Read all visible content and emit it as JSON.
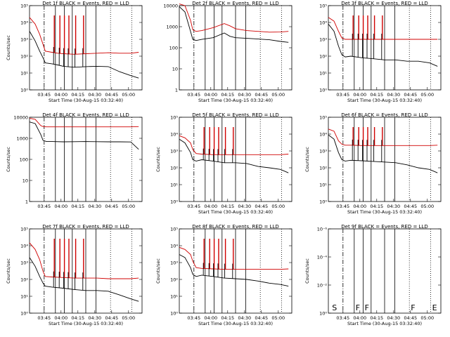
{
  "chart_data": [
    {
      "type": "line",
      "title": "Det 1f BLACK = Events, RED = LLD",
      "ylabel": "Counts/sec",
      "xlabel": "Start Time (30-Aug-15 03:32:40)",
      "xticks": [
        "03:45",
        "04:00",
        "04:15",
        "04:30",
        "04:45",
        "05:00"
      ],
      "yscale": "log",
      "ylim": [
        1,
        100000
      ],
      "yticks": [
        "10⁰",
        "10¹",
        "10²",
        "10³",
        "10⁴",
        "10⁵"
      ],
      "xlim_minutes": [
        0,
        100
      ],
      "lld": {
        "x": [
          0,
          5,
          9,
          12,
          14,
          20,
          25,
          30,
          40,
          50,
          60,
          70,
          80,
          90,
          97
        ],
        "y": [
          20000,
          8000,
          2000,
          500,
          200,
          170,
          150,
          140,
          130,
          140,
          150,
          160,
          150,
          150,
          170
        ]
      },
      "events": {
        "x": [
          0,
          5,
          9,
          12,
          14,
          20,
          25,
          30,
          40,
          50,
          60,
          70,
          80,
          90,
          97
        ],
        "y": [
          3000,
          800,
          200,
          80,
          40,
          35,
          30,
          25,
          22,
          24,
          25,
          24,
          12,
          7,
          5
        ]
      },
      "spikes": [
        22,
        27,
        31,
        35,
        41,
        48
      ],
      "markers": [
        {
          "x": 13,
          "style": "dashdot"
        },
        {
          "x": 23,
          "style": "solid"
        },
        {
          "x": 31,
          "style": "solid"
        },
        {
          "x": 38,
          "style": "solid"
        },
        {
          "x": 50,
          "style": "solid"
        },
        {
          "x": 59,
          "style": "solid"
        },
        {
          "x": 72,
          "style": "dot"
        },
        {
          "x": 91,
          "style": "dot"
        }
      ],
      "marker_labels": []
    },
    {
      "type": "line",
      "title": "Det 2f BLACK = Events, RED = LLD",
      "ylabel": "",
      "xlabel": "Start Time (30-Aug-15 03:32:40)",
      "xticks": [
        "03:45",
        "04:00",
        "04:15",
        "04:30",
        "04:45",
        "05:00"
      ],
      "yscale": "log",
      "ylim": [
        1,
        10000
      ],
      "yticks": [
        "1",
        "10",
        "100",
        "1000",
        "10000"
      ],
      "xlim_minutes": [
        0,
        100
      ],
      "lld": {
        "x": [
          0,
          5,
          10,
          12,
          15,
          20,
          30,
          40,
          45,
          50,
          60,
          70,
          80,
          90,
          97
        ],
        "y": [
          12000,
          10000,
          2000,
          700,
          600,
          650,
          900,
          1400,
          1100,
          800,
          650,
          600,
          550,
          560,
          600
        ]
      },
      "events": {
        "x": [
          0,
          5,
          10,
          12,
          15,
          20,
          30,
          40,
          45,
          50,
          60,
          70,
          80,
          90,
          97
        ],
        "y": [
          9000,
          5000,
          600,
          250,
          220,
          250,
          300,
          500,
          350,
          300,
          280,
          260,
          240,
          200,
          180
        ]
      },
      "spikes": [],
      "markers": [
        {
          "x": 13,
          "style": "dashdot"
        },
        {
          "x": 23,
          "style": "solid"
        },
        {
          "x": 31,
          "style": "solid"
        },
        {
          "x": 38,
          "style": "solid"
        },
        {
          "x": 50,
          "style": "solid"
        },
        {
          "x": 59,
          "style": "solid"
        },
        {
          "x": 72,
          "style": "dot"
        },
        {
          "x": 91,
          "style": "dot"
        }
      ],
      "marker_labels": []
    },
    {
      "type": "line",
      "title": "Det 3f BLACK = Events, RED = LLD",
      "ylabel": "",
      "xlabel": "Start Time (30-Aug-15 03:32:40)",
      "xticks": [
        "03:45",
        "04:00",
        "04:15",
        "04:30",
        "04:45",
        "05:00"
      ],
      "yscale": "log",
      "ylim": [
        1,
        100000
      ],
      "yticks": [
        "10⁰",
        "10¹",
        "10²",
        "10³",
        "10⁴",
        "10⁵"
      ],
      "xlim_minutes": [
        0,
        100
      ],
      "lld": {
        "x": [
          0,
          5,
          9,
          12,
          15,
          20,
          30,
          40,
          50,
          60,
          70,
          80,
          90,
          97
        ],
        "y": [
          20000,
          12000,
          3000,
          1200,
          1000,
          1000,
          1000,
          1000,
          1000,
          1000,
          1000,
          1000,
          1000,
          1000
        ]
      },
      "events": {
        "x": [
          0,
          5,
          9,
          12,
          15,
          20,
          30,
          40,
          50,
          60,
          70,
          80,
          90,
          97
        ],
        "y": [
          8000,
          3000,
          400,
          120,
          90,
          100,
          80,
          70,
          60,
          60,
          50,
          50,
          40,
          25
        ]
      },
      "spikes": [
        22,
        27,
        31,
        35,
        41,
        48
      ],
      "markers": [
        {
          "x": 13,
          "style": "dashdot"
        },
        {
          "x": 23,
          "style": "solid"
        },
        {
          "x": 31,
          "style": "solid"
        },
        {
          "x": 38,
          "style": "solid"
        },
        {
          "x": 50,
          "style": "solid"
        },
        {
          "x": 59,
          "style": "solid"
        },
        {
          "x": 72,
          "style": "dot"
        },
        {
          "x": 91,
          "style": "dot"
        }
      ],
      "marker_labels": []
    },
    {
      "type": "line",
      "title": "Det 4f BLACK = Events, RED = LLD",
      "ylabel": "Counts/sec",
      "xlabel": "",
      "xticks": [
        "03:45",
        "04:00",
        "04:15",
        "04:30",
        "04:45",
        "05:00"
      ],
      "yscale": "log",
      "ylim": [
        1,
        10000
      ],
      "yticks": [
        "1",
        "10",
        "100",
        "1000",
        "10000"
      ],
      "xlim_minutes": [
        0,
        100
      ],
      "lld": {
        "x": [
          0,
          5,
          10,
          12,
          15,
          20,
          30,
          40,
          50,
          60,
          70,
          80,
          90,
          97
        ],
        "y": [
          9000,
          8000,
          4000,
          3600,
          3500,
          3500,
          3500,
          3500,
          3500,
          3500,
          3500,
          3500,
          3500,
          3600
        ]
      },
      "events": {
        "x": [
          0,
          5,
          10,
          12,
          15,
          20,
          30,
          40,
          50,
          60,
          70,
          80,
          90,
          97
        ],
        "y": [
          6000,
          5000,
          1500,
          800,
          700,
          700,
          680,
          690,
          700,
          690,
          680,
          680,
          670,
          300
        ]
      },
      "spikes": [],
      "markers": [
        {
          "x": 13,
          "style": "dashdot"
        },
        {
          "x": 23,
          "style": "solid"
        },
        {
          "x": 31,
          "style": "solid"
        },
        {
          "x": 38,
          "style": "solid"
        },
        {
          "x": 50,
          "style": "solid"
        },
        {
          "x": 59,
          "style": "solid"
        },
        {
          "x": 72,
          "style": "dot"
        },
        {
          "x": 91,
          "style": "dot"
        }
      ],
      "marker_labels": []
    },
    {
      "type": "line",
      "title": "Det 5f BLACK = Events, RED = LLD",
      "ylabel": "Counts/sec",
      "xlabel": "Start Time (30-Aug-15 03:32:40)",
      "xticks": [
        "03:45",
        "04:00",
        "04:15",
        "04:30",
        "04:45",
        "05:00"
      ],
      "yscale": "log",
      "ylim": [
        1,
        100000
      ],
      "yticks": [
        "10⁰",
        "10¹",
        "10²",
        "10³",
        "10⁴",
        "10⁵"
      ],
      "xlim_minutes": [
        0,
        100
      ],
      "lld": {
        "x": [
          0,
          5,
          10,
          12,
          15,
          20,
          30,
          40,
          50,
          60,
          70,
          80,
          90,
          97
        ],
        "y": [
          8000,
          6000,
          3000,
          1200,
          700,
          650,
          600,
          600,
          600,
          600,
          600,
          600,
          600,
          650
        ]
      },
      "events": {
        "x": [
          0,
          5,
          10,
          12,
          15,
          20,
          30,
          40,
          50,
          60,
          70,
          80,
          90,
          97
        ],
        "y": [
          5000,
          3000,
          800,
          300,
          250,
          300,
          250,
          200,
          200,
          180,
          120,
          100,
          80,
          50
        ]
      },
      "spikes": [
        22,
        27,
        31,
        35,
        41,
        48
      ],
      "markers": [
        {
          "x": 13,
          "style": "dashdot"
        },
        {
          "x": 23,
          "style": "solid"
        },
        {
          "x": 31,
          "style": "solid"
        },
        {
          "x": 38,
          "style": "solid"
        },
        {
          "x": 50,
          "style": "solid"
        },
        {
          "x": 59,
          "style": "solid"
        },
        {
          "x": 72,
          "style": "dot"
        },
        {
          "x": 91,
          "style": "dot"
        }
      ],
      "marker_labels": []
    },
    {
      "type": "line",
      "title": "Det 6f BLACK = Events, RED = LLD",
      "ylabel": "Counts/sec",
      "xlabel": "Start Time (30-Aug-15 03:32:40)",
      "xticks": [
        "03:45",
        "04:00",
        "04:15",
        "04:30",
        "04:45",
        "05:00"
      ],
      "yscale": "log",
      "ylim": [
        1,
        100000
      ],
      "yticks": [
        "10⁰",
        "10¹",
        "10²",
        "10³",
        "10⁴",
        "10⁵"
      ],
      "xlim_minutes": [
        0,
        100
      ],
      "lld": {
        "x": [
          0,
          5,
          9,
          12,
          15,
          20,
          30,
          40,
          50,
          60,
          70,
          80,
          90,
          97
        ],
        "y": [
          20000,
          15000,
          4000,
          2500,
          2200,
          2200,
          2100,
          2100,
          2100,
          2100,
          2100,
          2100,
          2100,
          2200
        ]
      },
      "events": {
        "x": [
          0,
          5,
          9,
          12,
          15,
          20,
          30,
          40,
          50,
          60,
          70,
          80,
          90,
          97
        ],
        "y": [
          9000,
          5000,
          800,
          300,
          250,
          280,
          260,
          240,
          220,
          200,
          150,
          100,
          80,
          50
        ]
      },
      "spikes": [
        22,
        27,
        31,
        35,
        41,
        48
      ],
      "markers": [
        {
          "x": 13,
          "style": "dashdot"
        },
        {
          "x": 23,
          "style": "solid"
        },
        {
          "x": 31,
          "style": "solid"
        },
        {
          "x": 38,
          "style": "solid"
        },
        {
          "x": 50,
          "style": "solid"
        },
        {
          "x": 59,
          "style": "solid"
        },
        {
          "x": 72,
          "style": "dot"
        },
        {
          "x": 91,
          "style": "dot"
        }
      ],
      "marker_labels": []
    },
    {
      "type": "line",
      "title": "Det 7f BLACK = Events, RED = LLD",
      "ylabel": "Counts/sec",
      "xlabel": "Start Time (30-Aug-15 03:32:40)",
      "xticks": [
        "03:45",
        "04:00",
        "04:15",
        "04:30",
        "04:45",
        "05:00"
      ],
      "yscale": "log",
      "ylim": [
        1,
        100000
      ],
      "yticks": [
        "10⁰",
        "10¹",
        "10²",
        "10³",
        "10⁴",
        "10⁵"
      ],
      "xlim_minutes": [
        0,
        100
      ],
      "lld": {
        "x": [
          0,
          5,
          9,
          12,
          14,
          20,
          30,
          40,
          50,
          60,
          70,
          80,
          90,
          97
        ],
        "y": [
          15000,
          6000,
          1500,
          300,
          150,
          140,
          130,
          120,
          120,
          120,
          110,
          110,
          110,
          120
        ]
      },
      "events": {
        "x": [
          0,
          5,
          9,
          12,
          14,
          20,
          30,
          40,
          50,
          60,
          70,
          80,
          90,
          97
        ],
        "y": [
          2000,
          600,
          150,
          60,
          40,
          35,
          30,
          25,
          22,
          22,
          20,
          12,
          7,
          5
        ]
      },
      "spikes": [
        22,
        27,
        31,
        35,
        41,
        48
      ],
      "markers": [
        {
          "x": 13,
          "style": "dashdot"
        },
        {
          "x": 23,
          "style": "solid"
        },
        {
          "x": 31,
          "style": "solid"
        },
        {
          "x": 38,
          "style": "solid"
        },
        {
          "x": 50,
          "style": "solid"
        },
        {
          "x": 59,
          "style": "solid"
        },
        {
          "x": 72,
          "style": "dot"
        },
        {
          "x": 91,
          "style": "dot"
        }
      ],
      "marker_labels": []
    },
    {
      "type": "line",
      "title": "Det 8f BLACK = Events, RED = LLD",
      "ylabel": "Counts/sec",
      "xlabel": "Start Time (30-Aug-15 03:32:40)",
      "xticks": [
        "03:45",
        "04:00",
        "04:15",
        "04:30",
        "04:45",
        "05:00"
      ],
      "yscale": "log",
      "ylim": [
        1,
        100000
      ],
      "yticks": [
        "10⁰",
        "10¹",
        "10²",
        "10³",
        "10⁴",
        "10⁵"
      ],
      "xlim_minutes": [
        0,
        100
      ],
      "lld": {
        "x": [
          0,
          5,
          10,
          12,
          15,
          20,
          30,
          40,
          50,
          60,
          70,
          80,
          90,
          97
        ],
        "y": [
          8000,
          6000,
          3000,
          1200,
          500,
          450,
          420,
          400,
          400,
          400,
          400,
          400,
          400,
          420
        ]
      },
      "events": {
        "x": [
          0,
          5,
          10,
          12,
          15,
          20,
          30,
          40,
          50,
          60,
          70,
          80,
          90,
          97
        ],
        "y": [
          3000,
          2000,
          500,
          200,
          150,
          180,
          150,
          120,
          110,
          100,
          80,
          60,
          50,
          40
        ]
      },
      "spikes": [
        22,
        27,
        31,
        35,
        41,
        48
      ],
      "markers": [
        {
          "x": 13,
          "style": "dashdot"
        },
        {
          "x": 23,
          "style": "solid"
        },
        {
          "x": 31,
          "style": "solid"
        },
        {
          "x": 38,
          "style": "solid"
        },
        {
          "x": 50,
          "style": "solid"
        },
        {
          "x": 59,
          "style": "solid"
        },
        {
          "x": 72,
          "style": "dot"
        },
        {
          "x": 91,
          "style": "dot"
        }
      ],
      "marker_labels": []
    },
    {
      "type": "line",
      "title": "Det 9f BLACK = Events, RED = LLD",
      "ylabel": "Counts/sec",
      "xlabel": "Start Time (30-Aug-15 03:32:40)",
      "xticks": [
        "03:45",
        "04:00",
        "04:15",
        "04:30",
        "04:45",
        "05:00"
      ],
      "yscale": "log",
      "ylim": [
        1,
        1e-06
      ],
      "yticks": [
        "10⁰",
        "10⁻²",
        "10⁻⁴",
        "10⁻⁶"
      ],
      "xlim_minutes": [
        0,
        100
      ],
      "lld": {
        "x": [],
        "y": []
      },
      "events": {
        "x": [],
        "y": []
      },
      "spikes": [],
      "markers": [
        {
          "x": 13,
          "style": "dashdot"
        },
        {
          "x": 23,
          "style": "solid"
        },
        {
          "x": 31,
          "style": "solid"
        },
        {
          "x": 38,
          "style": "solid"
        },
        {
          "x": 50,
          "style": "solid"
        },
        {
          "x": 59,
          "style": "solid"
        },
        {
          "x": 72,
          "style": "dot"
        },
        {
          "x": 91,
          "style": "dot"
        }
      ],
      "marker_labels": [
        {
          "x": 2,
          "text": "S"
        },
        {
          "x": 23,
          "text": "F"
        },
        {
          "x": 31,
          "text": "F"
        },
        {
          "x": 72,
          "text": "F"
        },
        {
          "x": 91,
          "text": "E"
        }
      ]
    }
  ],
  "colors": {
    "events": "#000000",
    "lld": "#d00000"
  }
}
